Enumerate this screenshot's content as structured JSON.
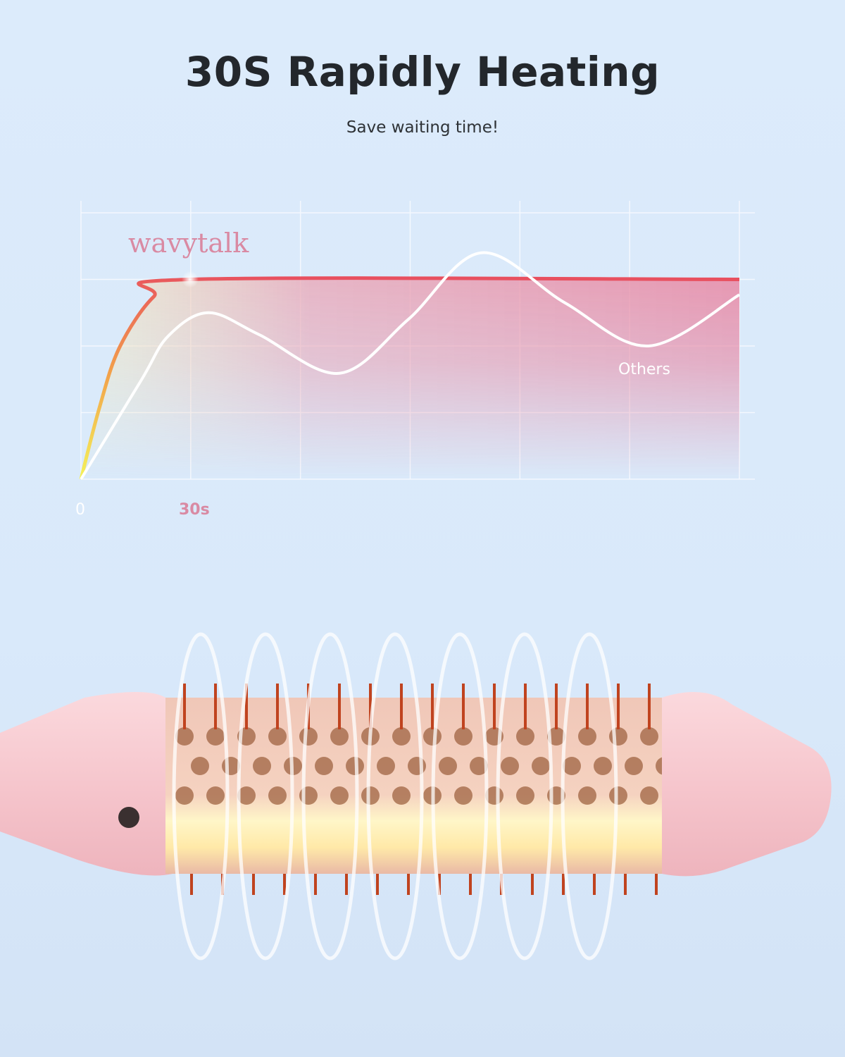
{
  "header": {
    "title": "30S Rapidly Heating",
    "subtitle": "Save waiting time!"
  },
  "chart_data": {
    "type": "line",
    "title": "",
    "xlabel": "",
    "ylabel": "",
    "x_ticks": [
      "0",
      "30s"
    ],
    "xlim": [
      0,
      181
    ],
    "ylim": [
      0,
      4
    ],
    "grid": true,
    "series": [
      {
        "name": "wavytalk",
        "color": "#e8505f",
        "fill": "#e88aa6",
        "x": [
          0,
          5,
          10.6,
          20,
          30,
          181
        ],
        "y": [
          0,
          1.06,
          1.98,
          2.74,
          3.0,
          3.0
        ]
      },
      {
        "name": "Others",
        "color": "#ffffff",
        "x": [
          0,
          16.5,
          24,
          35,
          49,
          71,
          90,
          110,
          133,
          156,
          181
        ],
        "y": [
          0,
          1.48,
          2.15,
          2.5,
          2.17,
          1.59,
          2.4,
          3.4,
          2.65,
          2.0,
          2.77
        ]
      }
    ]
  },
  "colors": {
    "accent_pink": "#e8505f",
    "brand_pink": "#d98aa3",
    "product_pink": "#f6c9d0"
  }
}
